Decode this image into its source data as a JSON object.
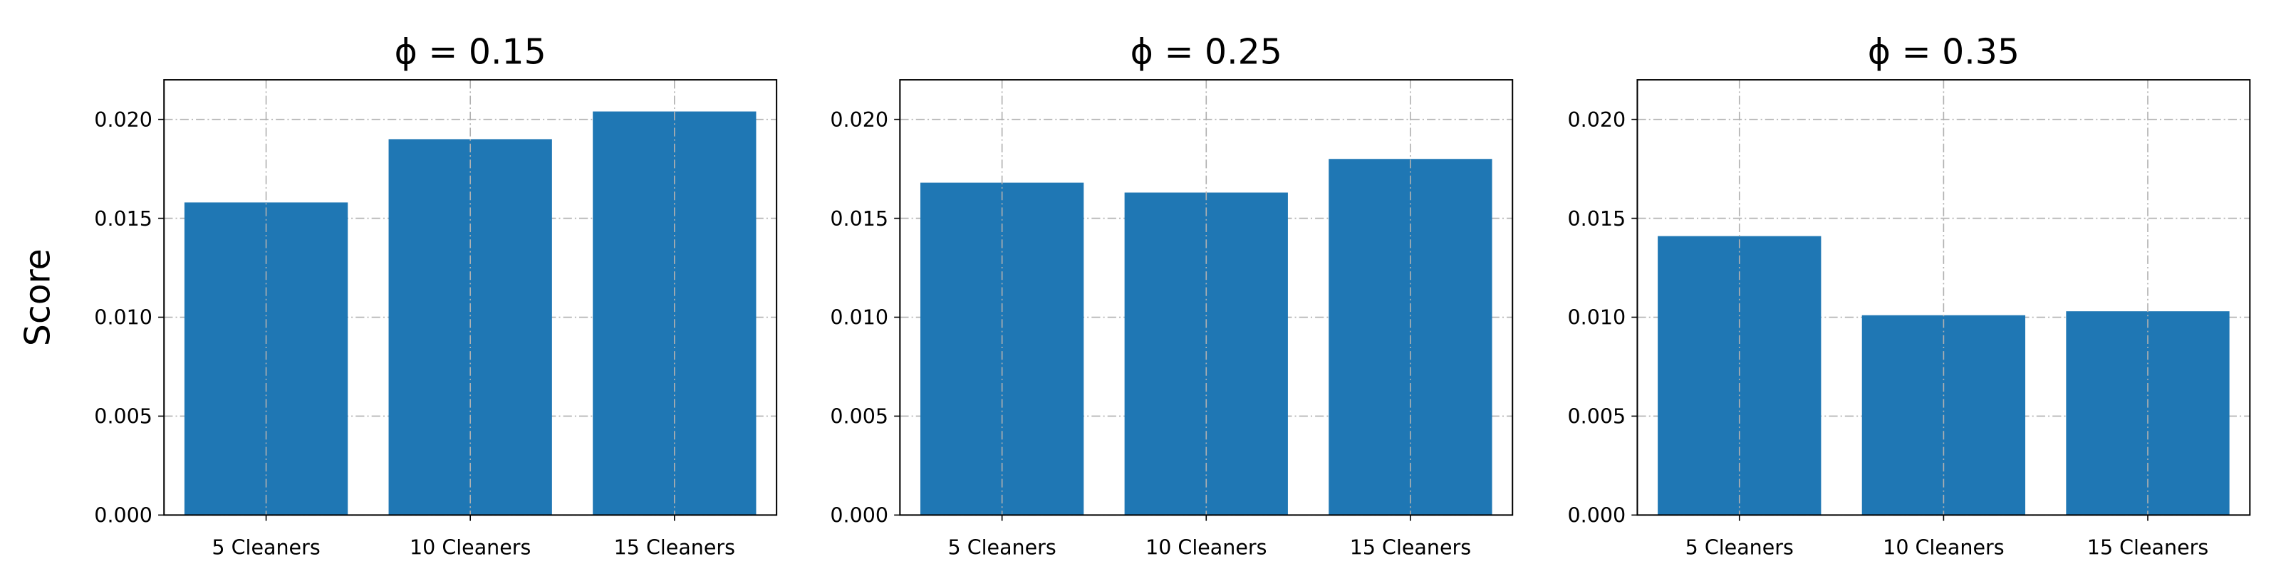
{
  "chart_data": [
    {
      "type": "bar",
      "title": "ϕ = 0.15",
      "y_label": "Score",
      "categories": [
        "5 Cleaners",
        "10 Cleaners",
        "15 Cleaners"
      ],
      "values": [
        0.0158,
        0.019,
        0.0204
      ],
      "color": "#1f77b4",
      "ylim": [
        0,
        0.022
      ],
      "yticks": [
        {
          "value": 0,
          "label": "0.000"
        },
        {
          "value": 0.005,
          "label": "0.005"
        },
        {
          "value": 0.01,
          "label": "0.010"
        },
        {
          "value": 0.015,
          "label": "0.015"
        },
        {
          "value": 0.02,
          "label": "0.020"
        }
      ],
      "grid": true
    },
    {
      "type": "bar",
      "title": "ϕ = 0.25",
      "categories": [
        "5 Cleaners",
        "10 Cleaners",
        "15 Cleaners"
      ],
      "values": [
        0.0168,
        0.0163,
        0.018
      ],
      "color": "#1f77b4",
      "ylim": [
        0,
        0.022
      ],
      "yticks": [
        {
          "value": 0,
          "label": "0.000"
        },
        {
          "value": 0.005,
          "label": "0.005"
        },
        {
          "value": 0.01,
          "label": "0.010"
        },
        {
          "value": 0.015,
          "label": "0.015"
        },
        {
          "value": 0.02,
          "label": "0.020"
        }
      ],
      "grid": true
    },
    {
      "type": "bar",
      "title": "ϕ = 0.35",
      "categories": [
        "5 Cleaners",
        "10 Cleaners",
        "15 Cleaners"
      ],
      "values": [
        0.0141,
        0.0101,
        0.0103
      ],
      "color": "#1f77b4",
      "ylim": [
        0,
        0.022
      ],
      "yticks": [
        {
          "value": 0,
          "label": "0.000"
        },
        {
          "value": 0.005,
          "label": "0.005"
        },
        {
          "value": 0.01,
          "label": "0.010"
        },
        {
          "value": 0.015,
          "label": "0.015"
        },
        {
          "value": 0.02,
          "label": "0.020"
        }
      ],
      "grid": true
    }
  ]
}
